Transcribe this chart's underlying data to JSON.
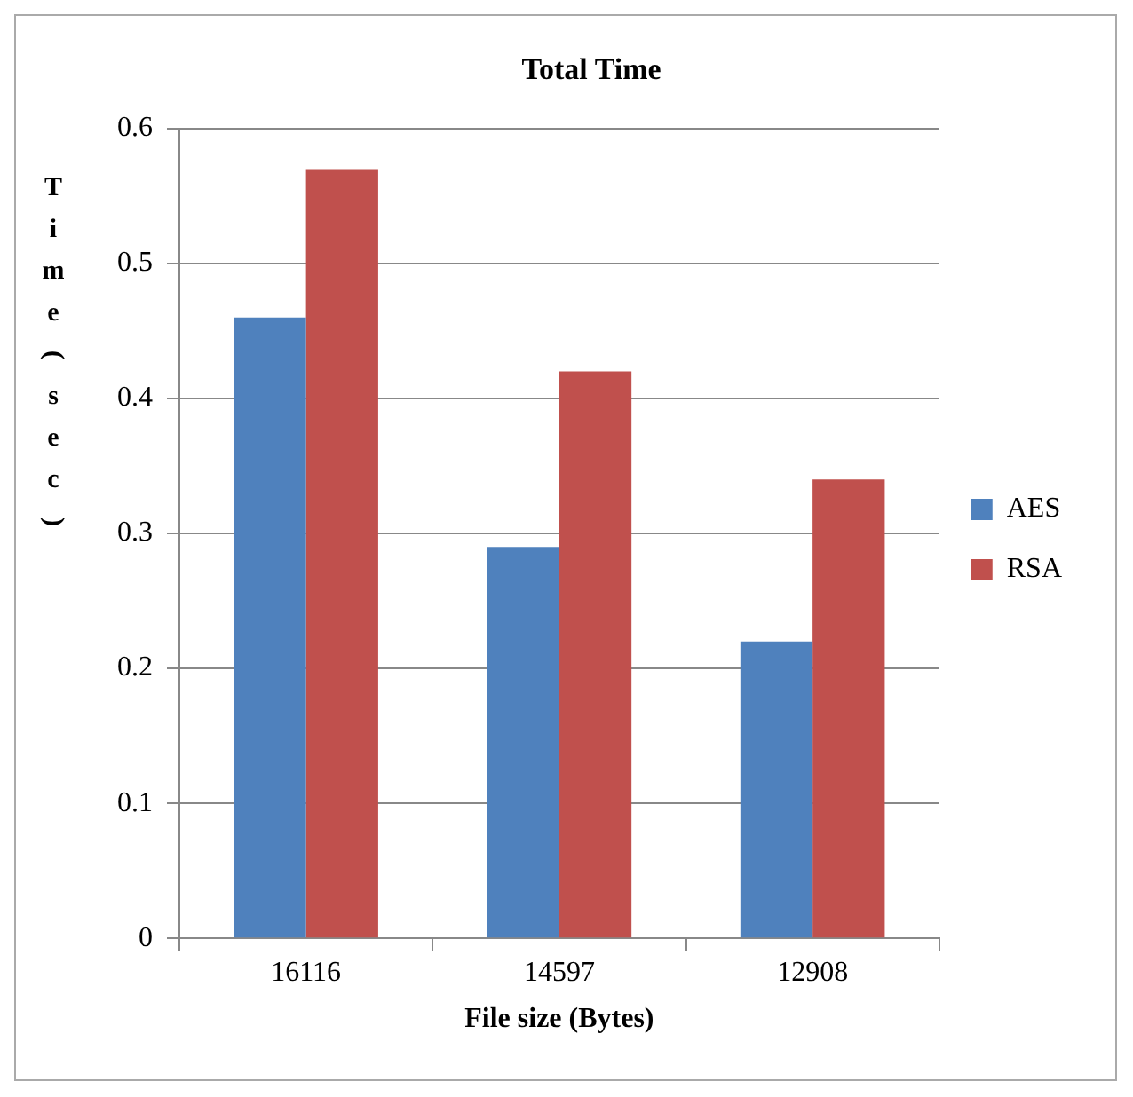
{
  "chart_data": {
    "type": "bar",
    "title": "Total Time",
    "xlabel": "File size (Bytes)",
    "ylabel": "Time ( sec)",
    "categories": [
      "16116",
      "14597",
      "12908"
    ],
    "series": [
      {
        "name": "AES",
        "color": "#4f81bd",
        "values": [
          0.46,
          0.29,
          0.22
        ]
      },
      {
        "name": "RSA",
        "color": "#c0504d",
        "values": [
          0.57,
          0.42,
          0.34
        ]
      }
    ],
    "ylim": [
      0,
      0.6
    ],
    "yticks": [
      0,
      0.1,
      0.2,
      0.3,
      0.4,
      0.5,
      0.6
    ],
    "grid": "y",
    "legend": "right"
  }
}
